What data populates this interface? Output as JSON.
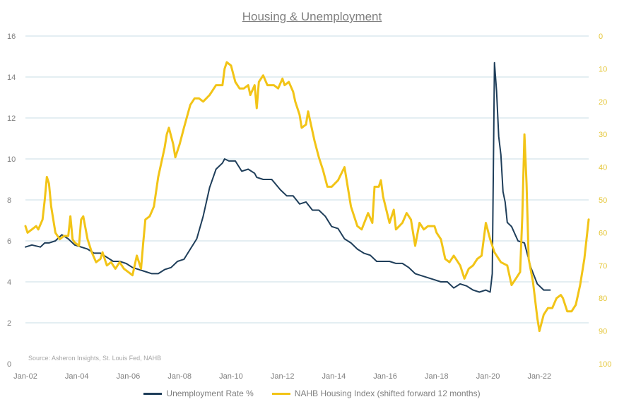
{
  "chart_data": {
    "type": "line",
    "title": "Housing & Unemployment",
    "source": "Source: Asheron Insights, St. Louis Fed, NAHB",
    "x_ticks": [
      "Jan-02",
      "Jan-04",
      "Jan-06",
      "Jan-08",
      "Jan-10",
      "Jan-12",
      "Jan-14",
      "Jan-16",
      "Jan-18",
      "Jan-20",
      "Jan-22"
    ],
    "y_left": {
      "min": 0,
      "max": 16,
      "ticks": [
        0,
        2,
        4,
        6,
        8,
        10,
        12,
        14,
        16
      ]
    },
    "y_right": {
      "min": 100,
      "max": 0,
      "reversed": true,
      "ticks": [
        0,
        10,
        20,
        30,
        40,
        50,
        60,
        70,
        80,
        90,
        100
      ]
    },
    "grid": true,
    "legend_position": "bottom",
    "series": [
      {
        "name": "Unemployment Rate %",
        "axis": "left",
        "color": "#1f3e5a",
        "points": [
          [
            "2002-01",
            5.7
          ],
          [
            "2002-04",
            5.8
          ],
          [
            "2002-08",
            5.7
          ],
          [
            "2002-10",
            5.9
          ],
          [
            "2002-12",
            5.9
          ],
          [
            "2003-03",
            6.0
          ],
          [
            "2003-06",
            6.3
          ],
          [
            "2003-09",
            6.1
          ],
          [
            "2003-12",
            5.8
          ],
          [
            "2004-03",
            5.7
          ],
          [
            "2004-06",
            5.6
          ],
          [
            "2004-09",
            5.4
          ],
          [
            "2004-12",
            5.4
          ],
          [
            "2005-03",
            5.2
          ],
          [
            "2005-06",
            5.0
          ],
          [
            "2005-09",
            5.0
          ],
          [
            "2005-12",
            4.9
          ],
          [
            "2006-03",
            4.7
          ],
          [
            "2006-06",
            4.6
          ],
          [
            "2006-09",
            4.5
          ],
          [
            "2006-12",
            4.4
          ],
          [
            "2007-03",
            4.4
          ],
          [
            "2007-06",
            4.6
          ],
          [
            "2007-09",
            4.7
          ],
          [
            "2007-12",
            5.0
          ],
          [
            "2008-03",
            5.1
          ],
          [
            "2008-06",
            5.6
          ],
          [
            "2008-09",
            6.1
          ],
          [
            "2008-12",
            7.2
          ],
          [
            "2009-03",
            8.6
          ],
          [
            "2009-06",
            9.5
          ],
          [
            "2009-09",
            9.8
          ],
          [
            "2009-10",
            10.0
          ],
          [
            "2009-12",
            9.9
          ],
          [
            "2010-03",
            9.9
          ],
          [
            "2010-06",
            9.4
          ],
          [
            "2010-09",
            9.5
          ],
          [
            "2010-12",
            9.3
          ],
          [
            "2011-01",
            9.1
          ],
          [
            "2011-04",
            9.0
          ],
          [
            "2011-08",
            9.0
          ],
          [
            "2011-12",
            8.5
          ],
          [
            "2012-03",
            8.2
          ],
          [
            "2012-06",
            8.2
          ],
          [
            "2012-09",
            7.8
          ],
          [
            "2012-12",
            7.9
          ],
          [
            "2013-03",
            7.5
          ],
          [
            "2013-06",
            7.5
          ],
          [
            "2013-09",
            7.2
          ],
          [
            "2013-12",
            6.7
          ],
          [
            "2014-03",
            6.6
          ],
          [
            "2014-06",
            6.1
          ],
          [
            "2014-09",
            5.9
          ],
          [
            "2014-12",
            5.6
          ],
          [
            "2015-03",
            5.4
          ],
          [
            "2015-06",
            5.3
          ],
          [
            "2015-09",
            5.0
          ],
          [
            "2015-12",
            5.0
          ],
          [
            "2016-03",
            5.0
          ],
          [
            "2016-06",
            4.9
          ],
          [
            "2016-09",
            4.9
          ],
          [
            "2016-12",
            4.7
          ],
          [
            "2017-03",
            4.4
          ],
          [
            "2017-06",
            4.3
          ],
          [
            "2017-09",
            4.2
          ],
          [
            "2017-12",
            4.1
          ],
          [
            "2018-03",
            4.0
          ],
          [
            "2018-06",
            4.0
          ],
          [
            "2018-09",
            3.7
          ],
          [
            "2018-12",
            3.9
          ],
          [
            "2019-03",
            3.8
          ],
          [
            "2019-06",
            3.6
          ],
          [
            "2019-09",
            3.5
          ],
          [
            "2019-12",
            3.6
          ],
          [
            "2020-02",
            3.5
          ],
          [
            "2020-03",
            4.4
          ],
          [
            "2020-04",
            14.7
          ],
          [
            "2020-05",
            13.3
          ],
          [
            "2020-06",
            11.1
          ],
          [
            "2020-07",
            10.2
          ],
          [
            "2020-08",
            8.4
          ],
          [
            "2020-09",
            7.9
          ],
          [
            "2020-10",
            6.9
          ],
          [
            "2020-12",
            6.7
          ],
          [
            "2021-03",
            6.0
          ],
          [
            "2021-06",
            5.9
          ],
          [
            "2021-09",
            4.7
          ],
          [
            "2021-12",
            3.9
          ],
          [
            "2022-03",
            3.6
          ],
          [
            "2022-06",
            3.6
          ]
        ]
      },
      {
        "name": "NAHB Housing Index (shifted forward 12 months)",
        "axis": "right",
        "color": "#f2c417",
        "points": [
          [
            "2002-01",
            58
          ],
          [
            "2002-02",
            60
          ],
          [
            "2002-04",
            59
          ],
          [
            "2002-06",
            58
          ],
          [
            "2002-07",
            59
          ],
          [
            "2002-09",
            56
          ],
          [
            "2002-10",
            50
          ],
          [
            "2002-11",
            43
          ],
          [
            "2002-12",
            45
          ],
          [
            "2003-01",
            52
          ],
          [
            "2003-03",
            60
          ],
          [
            "2003-05",
            62
          ],
          [
            "2003-07",
            61
          ],
          [
            "2003-09",
            61
          ],
          [
            "2003-10",
            55
          ],
          [
            "2003-11",
            62
          ],
          [
            "2003-12",
            63
          ],
          [
            "2004-02",
            64
          ],
          [
            "2004-03",
            56
          ],
          [
            "2004-04",
            55
          ],
          [
            "2004-06",
            62
          ],
          [
            "2004-08",
            66
          ],
          [
            "2004-10",
            69
          ],
          [
            "2004-12",
            68
          ],
          [
            "2005-01",
            66
          ],
          [
            "2005-03",
            70
          ],
          [
            "2005-05",
            69
          ],
          [
            "2005-07",
            71
          ],
          [
            "2005-09",
            69
          ],
          [
            "2005-11",
            71
          ],
          [
            "2006-01",
            72
          ],
          [
            "2006-03",
            73
          ],
          [
            "2006-05",
            67
          ],
          [
            "2006-07",
            71
          ],
          [
            "2006-08",
            63
          ],
          [
            "2006-09",
            56
          ],
          [
            "2006-11",
            55
          ],
          [
            "2007-01",
            52
          ],
          [
            "2007-03",
            43
          ],
          [
            "2007-06",
            34
          ],
          [
            "2007-07",
            30
          ],
          [
            "2007-08",
            28
          ],
          [
            "2007-10",
            33
          ],
          [
            "2007-11",
            37
          ],
          [
            "2008-01",
            33
          ],
          [
            "2008-03",
            28
          ],
          [
            "2008-06",
            21
          ],
          [
            "2008-08",
            19
          ],
          [
            "2008-10",
            19
          ],
          [
            "2008-12",
            20
          ],
          [
            "2009-03",
            18
          ],
          [
            "2009-06",
            15
          ],
          [
            "2009-09",
            15
          ],
          [
            "2009-10",
            10
          ],
          [
            "2009-11",
            8
          ],
          [
            "2010-01",
            9
          ],
          [
            "2010-03",
            14
          ],
          [
            "2010-05",
            16
          ],
          [
            "2010-07",
            16
          ],
          [
            "2010-09",
            15
          ],
          [
            "2010-10",
            18
          ],
          [
            "2010-12",
            15
          ],
          [
            "2011-01",
            22
          ],
          [
            "2011-02",
            14
          ],
          [
            "2011-04",
            12
          ],
          [
            "2011-06",
            15
          ],
          [
            "2011-09",
            15
          ],
          [
            "2011-11",
            16
          ],
          [
            "2012-01",
            13
          ],
          [
            "2012-02",
            15
          ],
          [
            "2012-04",
            14
          ],
          [
            "2012-06",
            17
          ],
          [
            "2012-07",
            20
          ],
          [
            "2012-09",
            24
          ],
          [
            "2012-10",
            28
          ],
          [
            "2012-12",
            27
          ],
          [
            "2013-01",
            23
          ],
          [
            "2013-02",
            26
          ],
          [
            "2013-04",
            32
          ],
          [
            "2013-06",
            37
          ],
          [
            "2013-08",
            41
          ],
          [
            "2013-10",
            46
          ],
          [
            "2013-12",
            46
          ],
          [
            "2014-03",
            44
          ],
          [
            "2014-06",
            40
          ],
          [
            "2014-09",
            52
          ],
          [
            "2014-12",
            58
          ],
          [
            "2015-02",
            59
          ],
          [
            "2015-05",
            54
          ],
          [
            "2015-07",
            57
          ],
          [
            "2015-08",
            46
          ],
          [
            "2015-10",
            46
          ],
          [
            "2015-11",
            44
          ],
          [
            "2015-12",
            49
          ],
          [
            "2016-03",
            57
          ],
          [
            "2016-05",
            53
          ],
          [
            "2016-06",
            59
          ],
          [
            "2016-09",
            57
          ],
          [
            "2016-11",
            54
          ],
          [
            "2017-01",
            56
          ],
          [
            "2017-03",
            64
          ],
          [
            "2017-05",
            57
          ],
          [
            "2017-07",
            59
          ],
          [
            "2017-09",
            58
          ],
          [
            "2017-12",
            58
          ],
          [
            "2018-01",
            60
          ],
          [
            "2018-03",
            62
          ],
          [
            "2018-05",
            68
          ],
          [
            "2018-07",
            69
          ],
          [
            "2018-09",
            67
          ],
          [
            "2018-12",
            70
          ],
          [
            "2019-02",
            74
          ],
          [
            "2019-04",
            71
          ],
          [
            "2019-06",
            70
          ],
          [
            "2019-08",
            68
          ],
          [
            "2019-10",
            67
          ],
          [
            "2019-12",
            57
          ],
          [
            "2020-02",
            62
          ],
          [
            "2020-04",
            66
          ],
          [
            "2020-07",
            69
          ],
          [
            "2020-10",
            70
          ],
          [
            "2020-12",
            76
          ],
          [
            "2021-02",
            74
          ],
          [
            "2021-04",
            72
          ],
          [
            "2021-05",
            55
          ],
          [
            "2021-06",
            30
          ],
          [
            "2021-07",
            45
          ],
          [
            "2021-08",
            68
          ],
          [
            "2021-10",
            75
          ],
          [
            "2021-12",
            86
          ],
          [
            "2022-01",
            90
          ],
          [
            "2022-03",
            85
          ],
          [
            "2022-05",
            83
          ],
          [
            "2022-07",
            83
          ],
          [
            "2022-09",
            80
          ],
          [
            "2022-11",
            79
          ],
          [
            "2022-12",
            80
          ],
          [
            "2023-02",
            84
          ],
          [
            "2023-04",
            84
          ],
          [
            "2023-06",
            82
          ],
          [
            "2023-08",
            76
          ],
          [
            "2023-10",
            68
          ],
          [
            "2023-12",
            56
          ]
        ]
      }
    ]
  }
}
